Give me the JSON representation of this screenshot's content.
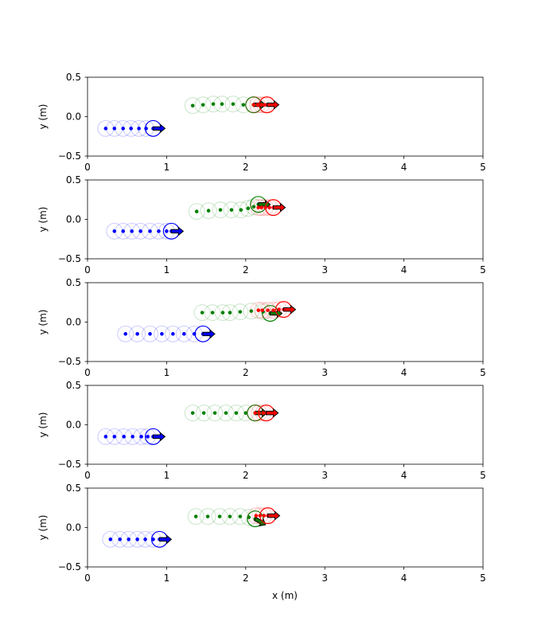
{
  "chart_data": {
    "type": "scatter",
    "shared_xlabel": "x (m)",
    "panels": [
      {
        "ylabel": "y (m)",
        "xlim": [
          0,
          5
        ],
        "ylim": [
          -0.5,
          0.5
        ],
        "xticks": [
          "0",
          "1",
          "2",
          "3",
          "4",
          "5"
        ],
        "yticks": [
          "−0.5",
          "0.0",
          "0.5"
        ],
        "agents": [
          {
            "color": "#0000ff",
            "trail": [
              [
                0.23,
                -0.15
              ],
              [
                0.34,
                -0.15
              ],
              [
                0.45,
                -0.15
              ],
              [
                0.55,
                -0.15
              ],
              [
                0.65,
                -0.15
              ],
              [
                0.74,
                -0.15
              ],
              [
                0.83,
                -0.15
              ]
            ],
            "current": [
              0.83,
              -0.15
            ],
            "heading": 0
          },
          {
            "color": "#008000",
            "trail": [
              [
                1.33,
                0.14
              ],
              [
                1.46,
                0.15
              ],
              [
                1.59,
                0.16
              ],
              [
                1.7,
                0.16
              ],
              [
                1.84,
                0.16
              ],
              [
                1.97,
                0.15
              ],
              [
                2.1,
                0.15
              ]
            ],
            "current": [
              2.1,
              0.15
            ],
            "heading": 0
          },
          {
            "color": "#ff0000",
            "trail": [
              [
                2.1,
                0.15
              ],
              [
                2.15,
                0.15
              ],
              [
                2.2,
                0.15
              ],
              [
                2.24,
                0.15
              ],
              [
                2.27,
                0.15
              ]
            ],
            "current": [
              2.27,
              0.15
            ],
            "heading": 0
          }
        ]
      },
      {
        "ylabel": "y (m)",
        "xlim": [
          0,
          5
        ],
        "ylim": [
          -0.5,
          0.5
        ],
        "xticks": [
          "0",
          "1",
          "2",
          "3",
          "4",
          "5"
        ],
        "yticks": [
          "−0.5",
          "0.0",
          "0.5"
        ],
        "agents": [
          {
            "color": "#0000ff",
            "trail": [
              [
                0.34,
                -0.15
              ],
              [
                0.45,
                -0.15
              ],
              [
                0.56,
                -0.15
              ],
              [
                0.67,
                -0.15
              ],
              [
                0.79,
                -0.15
              ],
              [
                0.9,
                -0.15
              ],
              [
                1.0,
                -0.15
              ],
              [
                1.06,
                -0.15
              ]
            ],
            "current": [
              1.06,
              -0.15
            ],
            "heading": 0
          },
          {
            "color": "#008000",
            "trail": [
              [
                1.38,
                0.1
              ],
              [
                1.53,
                0.11
              ],
              [
                1.68,
                0.12
              ],
              [
                1.82,
                0.12
              ],
              [
                1.94,
                0.12
              ],
              [
                2.03,
                0.14
              ],
              [
                2.1,
                0.16
              ],
              [
                2.16,
                0.19
              ]
            ],
            "current": [
              2.16,
              0.19
            ],
            "heading": 0
          },
          {
            "color": "#ff0000",
            "trail": [
              [
                2.16,
                0.15
              ],
              [
                2.2,
                0.15
              ],
              [
                2.25,
                0.15
              ],
              [
                2.3,
                0.15
              ],
              [
                2.35,
                0.15
              ]
            ],
            "current": [
              2.35,
              0.15
            ],
            "heading": 0
          }
        ]
      },
      {
        "ylabel": "y (m)",
        "xlim": [
          0,
          5
        ],
        "ylim": [
          -0.5,
          0.5
        ],
        "xticks": [
          "0",
          "1",
          "2",
          "3",
          "4",
          "5"
        ],
        "yticks": [
          "−0.5",
          "0.0",
          "0.5"
        ],
        "agents": [
          {
            "color": "#0000ff",
            "trail": [
              [
                0.48,
                -0.15
              ],
              [
                0.63,
                -0.15
              ],
              [
                0.79,
                -0.15
              ],
              [
                0.94,
                -0.15
              ],
              [
                1.08,
                -0.15
              ],
              [
                1.22,
                -0.15
              ],
              [
                1.35,
                -0.15
              ],
              [
                1.46,
                -0.15
              ]
            ],
            "current": [
              1.46,
              -0.15
            ],
            "heading": 0
          },
          {
            "color": "#008000",
            "trail": [
              [
                1.45,
                0.12
              ],
              [
                1.58,
                0.12
              ],
              [
                1.71,
                0.12
              ],
              [
                1.8,
                0.12
              ],
              [
                1.93,
                0.13
              ],
              [
                2.07,
                0.14
              ],
              [
                2.22,
                0.13
              ],
              [
                2.31,
                0.11
              ]
            ],
            "current": [
              2.31,
              0.11
            ],
            "heading": 0
          },
          {
            "color": "#ff0000",
            "trail": [
              [
                2.16,
                0.15
              ],
              [
                2.21,
                0.15
              ],
              [
                2.28,
                0.15
              ],
              [
                2.35,
                0.15
              ],
              [
                2.42,
                0.16
              ],
              [
                2.48,
                0.16
              ]
            ],
            "current": [
              2.48,
              0.16
            ],
            "heading": 0
          }
        ]
      },
      {
        "ylabel": "y (m)",
        "xlim": [
          0,
          5
        ],
        "ylim": [
          -0.5,
          0.5
        ],
        "xticks": [
          "0",
          "1",
          "2",
          "3",
          "4",
          "5"
        ],
        "yticks": [
          "−0.5",
          "0.0",
          "0.5"
        ],
        "agents": [
          {
            "color": "#0000ff",
            "trail": [
              [
                0.23,
                -0.15
              ],
              [
                0.34,
                -0.15
              ],
              [
                0.46,
                -0.15
              ],
              [
                0.57,
                -0.15
              ],
              [
                0.68,
                -0.15
              ],
              [
                0.76,
                -0.15
              ],
              [
                0.83,
                -0.15
              ]
            ],
            "current": [
              0.83,
              -0.15
            ],
            "heading": 0
          },
          {
            "color": "#008000",
            "trail": [
              [
                1.33,
                0.15
              ],
              [
                1.47,
                0.15
              ],
              [
                1.61,
                0.15
              ],
              [
                1.75,
                0.15
              ],
              [
                1.88,
                0.15
              ],
              [
                2.0,
                0.15
              ],
              [
                2.12,
                0.15
              ]
            ],
            "current": [
              2.12,
              0.15
            ],
            "heading": 0
          },
          {
            "color": "#ff0000",
            "trail": [
              [
                2.12,
                0.15
              ],
              [
                2.17,
                0.15
              ],
              [
                2.22,
                0.15
              ],
              [
                2.26,
                0.15
              ]
            ],
            "current": [
              2.26,
              0.15
            ],
            "heading": 0
          }
        ]
      },
      {
        "ylabel": "y (m)",
        "xlim": [
          0,
          5
        ],
        "ylim": [
          -0.5,
          0.5
        ],
        "xticks": [
          "0",
          "1",
          "2",
          "3",
          "4",
          "5"
        ],
        "yticks": [
          "−0.5",
          "0.0",
          "0.5"
        ],
        "agents": [
          {
            "color": "#0000ff",
            "trail": [
              [
                0.29,
                -0.15
              ],
              [
                0.41,
                -0.15
              ],
              [
                0.52,
                -0.15
              ],
              [
                0.63,
                -0.15
              ],
              [
                0.73,
                -0.15
              ],
              [
                0.83,
                -0.15
              ],
              [
                0.91,
                -0.15
              ]
            ],
            "current": [
              0.91,
              -0.15
            ],
            "heading": 0
          },
          {
            "color": "#008000",
            "trail": [
              [
                1.37,
                0.14
              ],
              [
                1.52,
                0.14
              ],
              [
                1.67,
                0.14
              ],
              [
                1.8,
                0.14
              ],
              [
                1.93,
                0.14
              ],
              [
                2.04,
                0.13
              ],
              [
                2.12,
                0.11
              ]
            ],
            "current": [
              2.12,
              0.11
            ],
            "heading": -30
          },
          {
            "color": "#ff0000",
            "trail": [
              [
                2.13,
                0.15
              ],
              [
                2.18,
                0.15
              ],
              [
                2.23,
                0.15
              ],
              [
                2.28,
                0.15
              ]
            ],
            "current": [
              2.28,
              0.15
            ],
            "heading": 0
          }
        ]
      }
    ]
  }
}
